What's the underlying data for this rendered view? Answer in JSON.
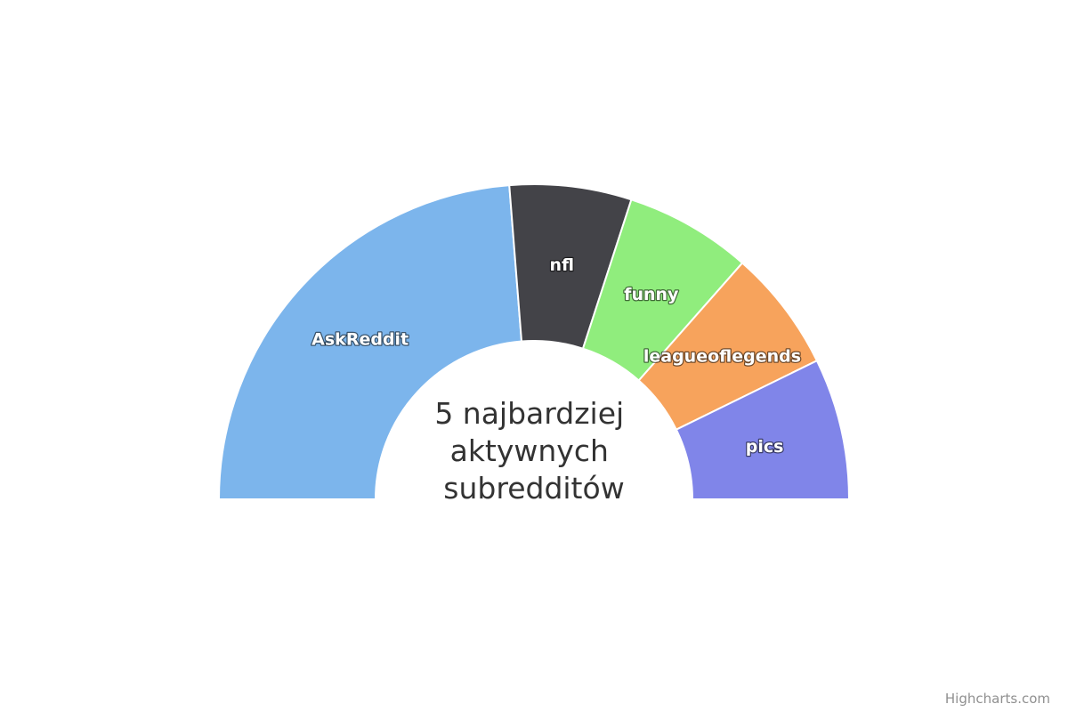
{
  "chart_data": {
    "type": "pie",
    "variant": "semi-circle donut",
    "title": "5 najbardziej aktywnych subredditów",
    "title_lines": [
      "5 najbardziej",
      "aktywnych",
      "subredditów"
    ],
    "start_angle_deg": -90,
    "end_angle_deg": 90,
    "series": [
      {
        "data": [
          {
            "name": "AskReddit",
            "value": 47.5,
            "color": "#7cb5ec"
          },
          {
            "name": "nfl",
            "value": 12.5,
            "color": "#434348"
          },
          {
            "name": "funny",
            "value": 13.0,
            "color": "#90ed7d"
          },
          {
            "name": "leagueoflegends",
            "value": 12.5,
            "color": "#f7a35c"
          },
          {
            "name": "pics",
            "value": 14.5,
            "color": "#8085e9"
          }
        ]
      }
    ],
    "legend": "none",
    "data_labels": "inside"
  },
  "credits": "Highcharts.com"
}
